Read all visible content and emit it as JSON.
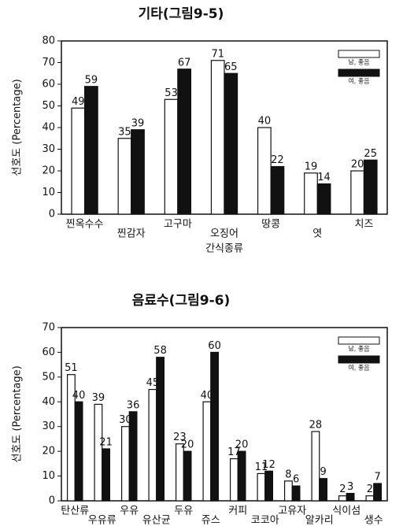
{
  "chart_data": [
    {
      "type": "bar",
      "title": "기타(그림9-5)",
      "y_label": "선호도 (Percentage)",
      "x_label": "간식종류",
      "categories": [
        "찐옥수수",
        "찐감자",
        "고구마",
        "오징어",
        "땅콩",
        "엿",
        "치즈"
      ],
      "series": [
        {
          "name": "남, 좋음",
          "color": "#ffffff",
          "values": [
            49,
            35,
            53,
            71,
            40,
            19,
            20
          ]
        },
        {
          "name": "여, 좋음",
          "color": "#111111",
          "values": [
            59,
            39,
            67,
            65,
            22,
            14,
            25
          ]
        }
      ],
      "ylim": [
        0,
        80
      ],
      "yticks": [
        0,
        10,
        20,
        30,
        40,
        50,
        60,
        70,
        80
      ],
      "legend": "upper right"
    },
    {
      "type": "bar",
      "title": "음료수(그림9-6)",
      "y_label": "선호도 (Percentage)",
      "categories": [
        "탄산류",
        "우유류",
        "우유",
        "유산균",
        "두유",
        "쥬스",
        "커피",
        "코코아",
        "고유자",
        "알카리",
        "식이섬",
        "생수"
      ],
      "series": [
        {
          "name": "남, 좋음",
          "color": "#ffffff",
          "values": [
            51,
            39,
            30,
            45,
            23,
            40,
            17,
            11,
            8,
            28,
            2,
            2
          ]
        },
        {
          "name": "여, 좋음",
          "color": "#111111",
          "values": [
            40,
            21,
            36,
            58,
            20,
            60,
            20,
            12,
            6,
            9,
            3,
            7
          ]
        }
      ],
      "ylim": [
        0,
        70
      ],
      "yticks": [
        0,
        10,
        20,
        30,
        40,
        50,
        60,
        70
      ],
      "legend": "upper right"
    }
  ]
}
